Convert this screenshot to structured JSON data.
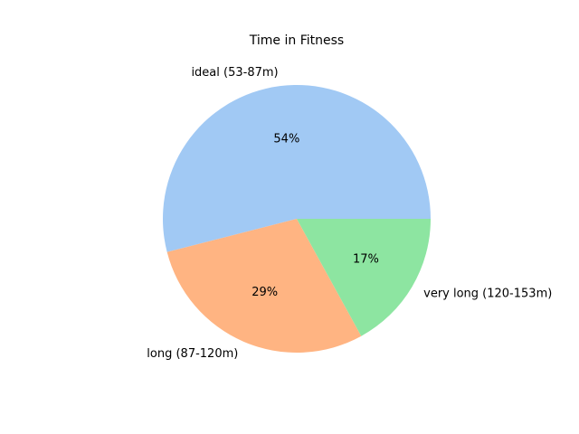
{
  "chart_data": {
    "type": "pie",
    "title": "Time in Fitness",
    "categories": [
      "ideal (53-87m)",
      "long (87-120m)",
      "very long (120-153m)"
    ],
    "values": [
      54,
      29,
      17
    ],
    "percent_labels": [
      "54%",
      "29%",
      "17%"
    ],
    "colors": [
      "#a1c9f4",
      "#ffb482",
      "#8de5a1"
    ],
    "start_angle_deg": 0,
    "direction": "counterclockwise",
    "legend": false
  }
}
